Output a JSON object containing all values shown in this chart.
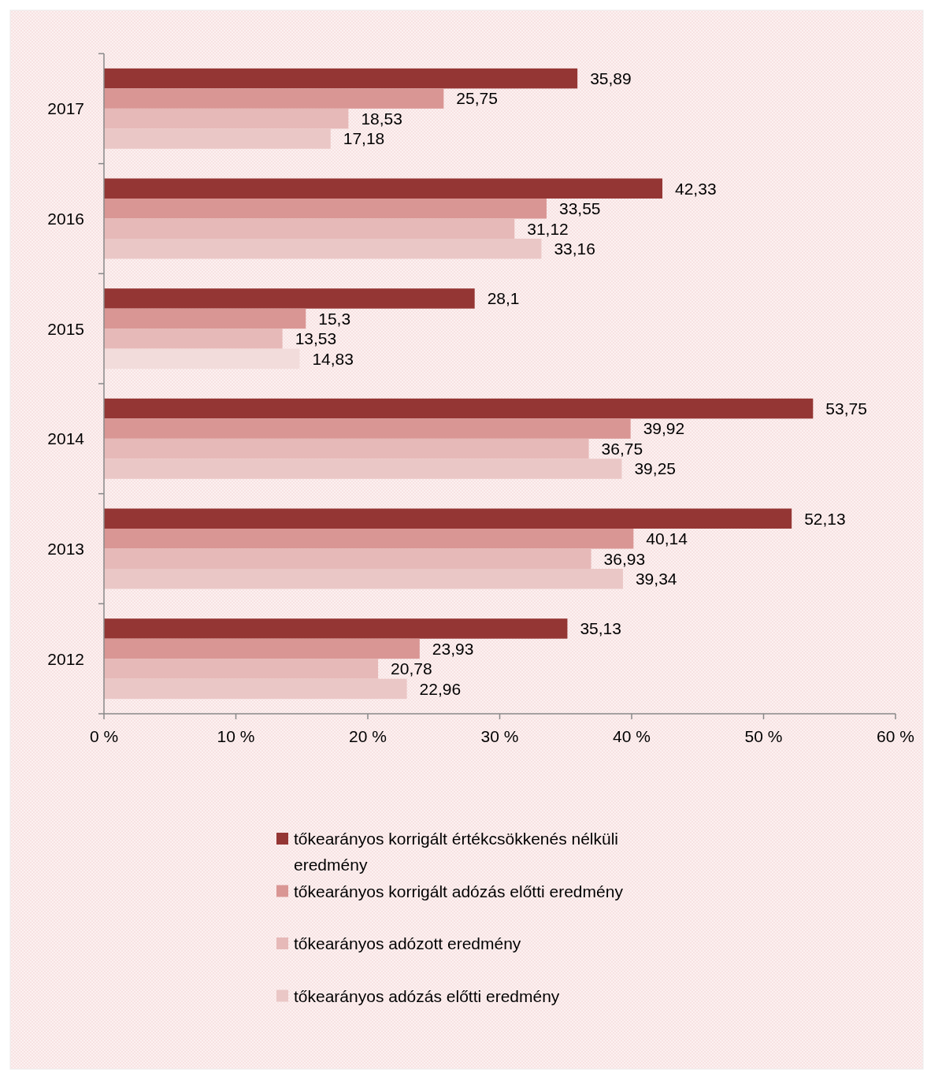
{
  "chart_data": {
    "type": "bar",
    "orientation": "horizontal",
    "categories": [
      "2017",
      "2016",
      "2015",
      "2014",
      "2013",
      "2012"
    ],
    "series": [
      {
        "name": "tőkearányos korrigált értékcsökkenés nélküli eredmény",
        "color": "#943634",
        "values": [
          35.89,
          42.33,
          28.1,
          53.75,
          52.13,
          35.13
        ],
        "value_labels": [
          "35,89",
          "42,33",
          "28,1",
          "53,75",
          "52,13",
          "35,13"
        ]
      },
      {
        "name": "tőkearányos korrigált adózás előtti eredmény",
        "color": "#d99694",
        "values": [
          25.75,
          33.55,
          15.3,
          39.92,
          40.14,
          23.93
        ],
        "value_labels": [
          "25,75",
          "33,55",
          "15,3",
          "39,92",
          "40,14",
          "23,93"
        ]
      },
      {
        "name": "tőkearányos adózott eredmény",
        "color": "#e6b9b8",
        "values": [
          18.53,
          31.12,
          13.53,
          36.75,
          36.93,
          20.78
        ],
        "value_labels": [
          "18,53",
          "31,12",
          "13,53",
          "36,75",
          "36,93",
          "20,78"
        ]
      },
      {
        "name": "tőkearányos adózás előtti eredmény",
        "color": "#eac7c6",
        "colors": [
          "#eac7c6",
          "#eac7c6",
          "#f2dcdb",
          "#eac7c6",
          "#eac7c6",
          "#eac7c6"
        ],
        "values": [
          17.18,
          33.16,
          14.83,
          39.25,
          39.34,
          22.96
        ],
        "value_labels": [
          "17,18",
          "33,16",
          "14,83",
          "39,25",
          "39,34",
          "22,96"
        ]
      }
    ],
    "xlim": [
      0,
      60
    ],
    "xticks": [
      {
        "value": 0,
        "label": "0 %"
      },
      {
        "value": 10,
        "label": "10 %"
      },
      {
        "value": 20,
        "label": "20 %"
      },
      {
        "value": 30,
        "label": "30 %"
      },
      {
        "value": 40,
        "label": "40 %"
      },
      {
        "value": 50,
        "label": "50 %"
      },
      {
        "value": 60,
        "label": "60 %"
      }
    ],
    "legend": "bottom"
  }
}
